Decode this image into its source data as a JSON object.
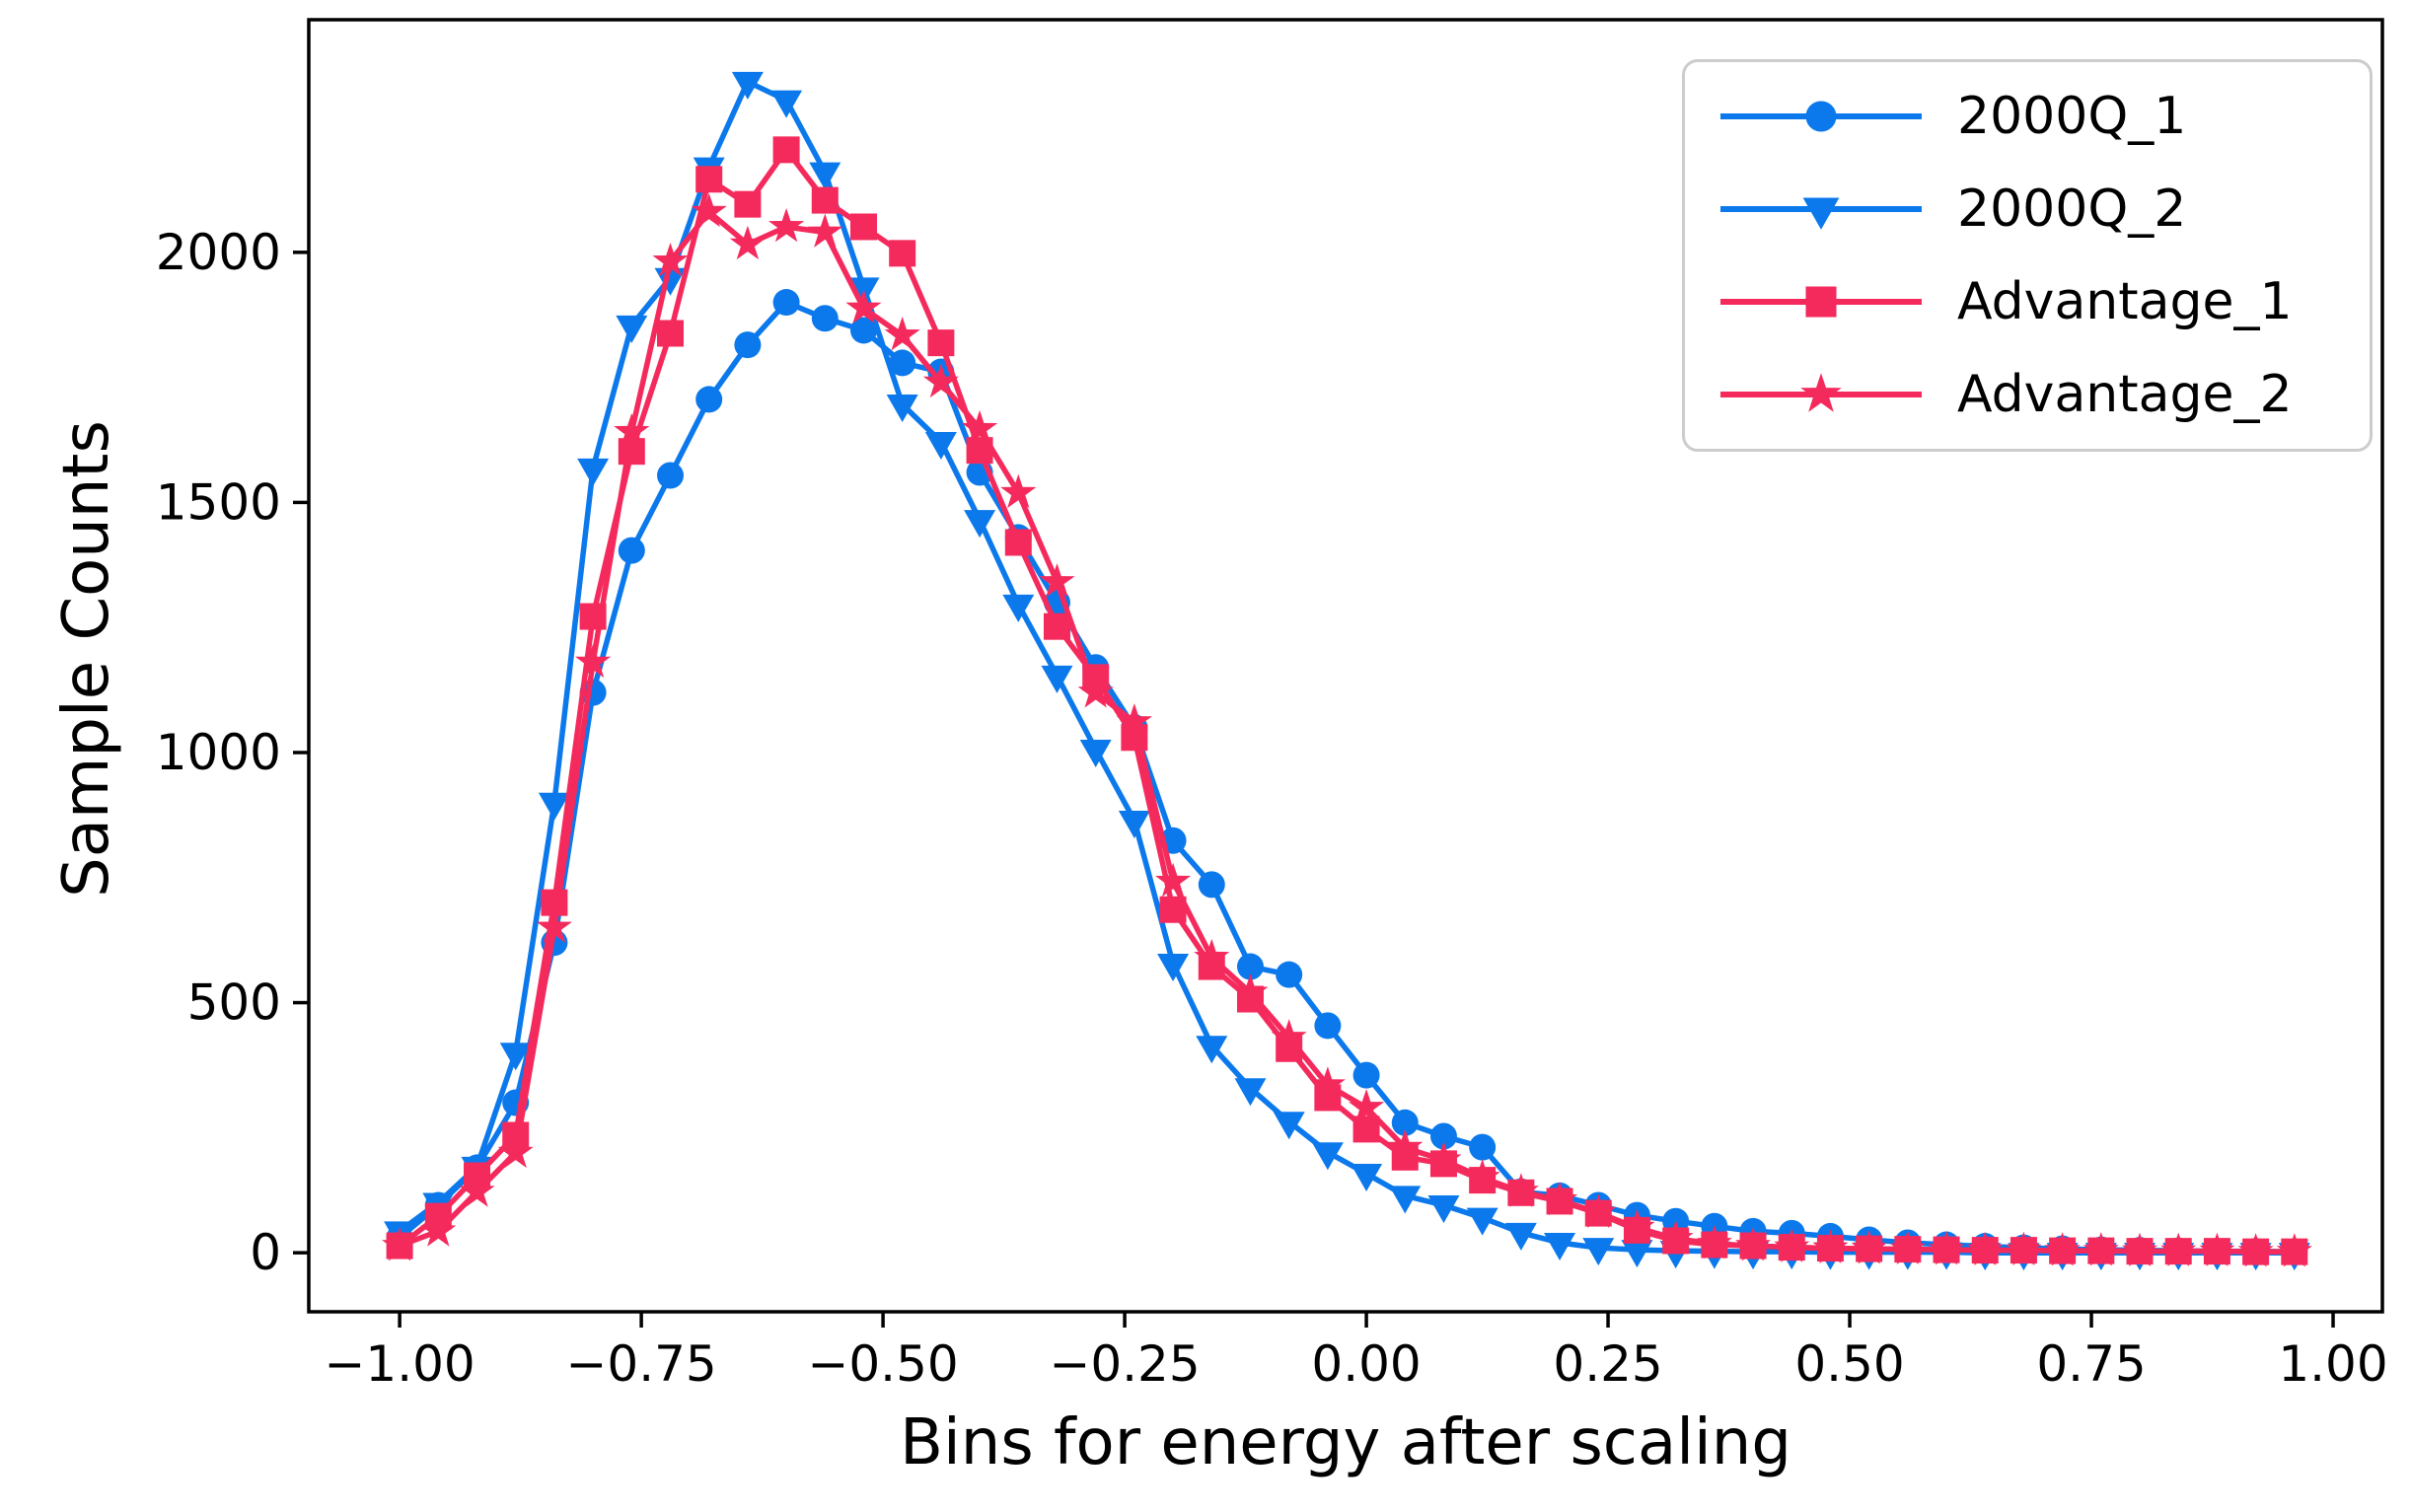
{
  "chart_data": {
    "type": "line",
    "title": "",
    "xlabel": "Bins for energy after scaling",
    "ylabel": "Sample Counts",
    "xlim": [
      -1.094,
      1.051
    ],
    "ylim": [
      -118,
      2465
    ],
    "grid": false,
    "legend_position": "upper right",
    "xticks": {
      "values": [
        -1.0,
        -0.75,
        -0.5,
        -0.25,
        0.0,
        0.25,
        0.5,
        0.75,
        1.0
      ],
      "labels": [
        "−1.00",
        "−0.75",
        "−0.50",
        "−0.25",
        "0.00",
        "0.25",
        "0.50",
        "0.75",
        "1.00"
      ]
    },
    "yticks": {
      "values": [
        0,
        500,
        1000,
        1500,
        2000
      ],
      "labels": [
        "0",
        "500",
        "1000",
        "1500",
        "2000"
      ]
    },
    "x": [
      -1.0,
      -0.96,
      -0.92,
      -0.88,
      -0.84,
      -0.8,
      -0.76,
      -0.72,
      -0.68,
      -0.64,
      -0.6,
      -0.56,
      -0.52,
      -0.48,
      -0.44,
      -0.4,
      -0.36,
      -0.32,
      -0.28,
      -0.24,
      -0.2,
      -0.16,
      -0.12,
      -0.08,
      -0.04,
      0.0,
      0.04,
      0.08,
      0.12,
      0.16,
      0.2,
      0.24,
      0.28,
      0.32,
      0.36,
      0.4,
      0.44,
      0.48,
      0.52,
      0.56,
      0.6,
      0.64,
      0.68,
      0.72,
      0.76,
      0.8,
      0.84,
      0.88,
      0.92,
      0.96
    ],
    "series": [
      {
        "name": "2000Q_1",
        "color": "#0b79ec",
        "marker": "circle",
        "values": [
          30,
          95,
          170,
          300,
          620,
          1120,
          1404,
          1554,
          1706,
          1815,
          1900,
          1868,
          1844,
          1779,
          1761,
          1560,
          1430,
          1300,
          1170,
          1050,
          824,
          736,
          572,
          556,
          454,
          355,
          260,
          233,
          211,
          122,
          114,
          95,
          75,
          63,
          53,
          43,
          39,
          33,
          26,
          20,
          16,
          13,
          10,
          8,
          6,
          5,
          4,
          3,
          3,
          2
        ]
      },
      {
        "name": "2000Q_2",
        "color": "#0b79ec",
        "marker": "triangle-down",
        "values": [
          43,
          100,
          172,
          400,
          900,
          1568,
          1854,
          1949,
          2170,
          2341,
          2304,
          2160,
          1930,
          1696,
          1621,
          1465,
          1296,
          1154,
          1006,
          864,
          578,
          414,
          329,
          262,
          201,
          158,
          114,
          95,
          70,
          40,
          20,
          10,
          6,
          4,
          3,
          2,
          2,
          1,
          1,
          1,
          1,
          0,
          0,
          0,
          0,
          0,
          0,
          0,
          0,
          0
        ]
      },
      {
        "name": "Advantage_1",
        "color": "#f52a5c",
        "marker": "square",
        "values": [
          14,
          73,
          154,
          235,
          700,
          1272,
          1602,
          1838,
          2146,
          2096,
          2205,
          2104,
          2051,
          1998,
          1819,
          1604,
          1420,
          1252,
          1150,
          1030,
          686,
          572,
          507,
          408,
          310,
          247,
          191,
          178,
          145,
          120,
          103,
          79,
          45,
          24,
          16,
          14,
          11,
          9,
          8,
          7,
          6,
          5,
          5,
          4,
          4,
          3,
          3,
          3,
          2,
          2
        ]
      },
      {
        "name": "Advantage_2",
        "color": "#f52a5c",
        "marker": "star",
        "values": [
          14,
          43,
          122,
          200,
          650,
          1180,
          1641,
          1982,
          2081,
          2016,
          2051,
          2040,
          1888,
          1834,
          1740,
          1647,
          1519,
          1341,
          1120,
          1061,
          742,
          590,
          520,
          430,
          335,
          290,
          210,
          185,
          150,
          122,
          105,
          80,
          50,
          28,
          18,
          14,
          11,
          9,
          8,
          7,
          6,
          5,
          5,
          4,
          4,
          3,
          3,
          3,
          2,
          2
        ]
      }
    ]
  }
}
